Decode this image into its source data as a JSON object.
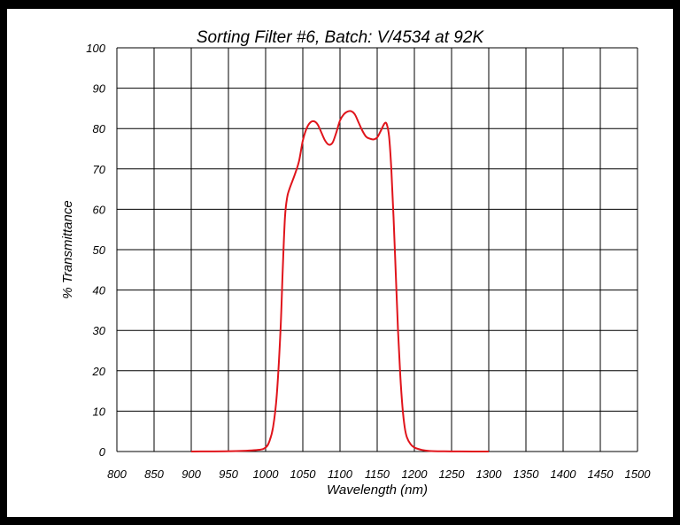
{
  "chart_data": {
    "type": "line",
    "title": "Sorting Filter #6, Batch: V/4534  at 92K",
    "xlabel": "Wavelength (nm)",
    "ylabel": "% Transmittance",
    "xlim": [
      800,
      1500
    ],
    "ylim": [
      0,
      100
    ],
    "xticks": [
      "800",
      "850",
      "900",
      "950",
      "1000",
      "1050",
      "1100",
      "1150",
      "1200",
      "1250",
      "1300",
      "1350",
      "1400",
      "1450",
      "1500"
    ],
    "yticks": [
      "0",
      "10",
      "20",
      "30",
      "40",
      "50",
      "60",
      "70",
      "80",
      "90",
      "100"
    ],
    "grid": true,
    "line_color": "#e0141b",
    "series": [
      {
        "x": [
          900,
          960,
          990,
          1000,
          1005,
          1010,
          1015,
          1020,
          1023,
          1026,
          1029,
          1032,
          1036,
          1040,
          1045,
          1050,
          1055,
          1060,
          1065,
          1070,
          1075,
          1080,
          1085,
          1090,
          1095,
          1100,
          1105,
          1110,
          1115,
          1120,
          1125,
          1130,
          1135,
          1140,
          1145,
          1150,
          1155,
          1160,
          1163,
          1166,
          1169,
          1172,
          1175,
          1178,
          1181,
          1184,
          1187,
          1190,
          1195,
          1200,
          1210,
          1220,
          1240,
          1260,
          1300
        ],
        "y": [
          0,
          0.1,
          0.4,
          1.0,
          2.5,
          6,
          14,
          30,
          45,
          58,
          63,
          65,
          67,
          69,
          72,
          77,
          80,
          81.5,
          81.8,
          81,
          79,
          77,
          76,
          76.5,
          79,
          82,
          83.5,
          84.2,
          84.3,
          83.5,
          81.5,
          79.5,
          78,
          77.5,
          77.3,
          77.8,
          79.5,
          81.3,
          81,
          78,
          70,
          58,
          44,
          30,
          19,
          11,
          6,
          3.5,
          1.8,
          1.0,
          0.4,
          0.15,
          0.05,
          0.02,
          0
        ]
      }
    ]
  }
}
